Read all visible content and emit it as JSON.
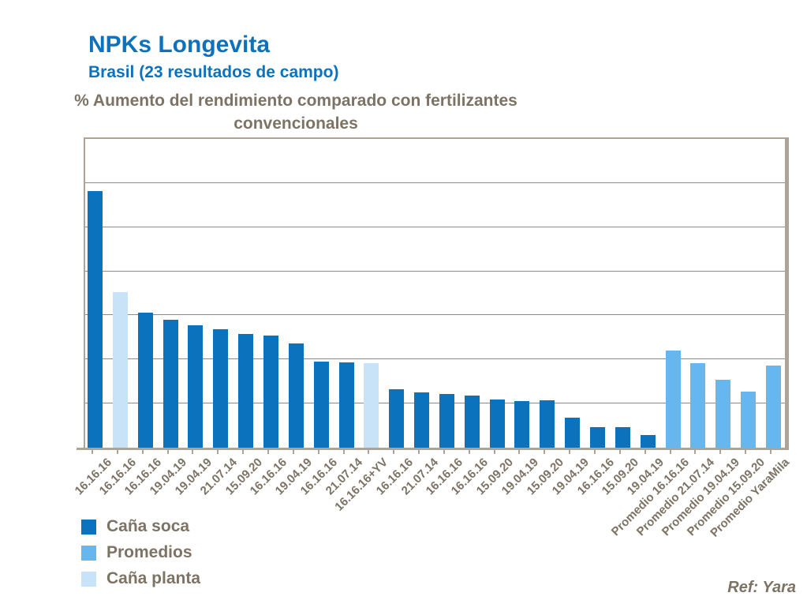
{
  "header": {
    "title": "NPKs Longevita",
    "subtitle": "Brasil (23 resultados de campo)"
  },
  "chart": {
    "title_lines": [
      "% Aumento del rendimiento comparado con fertilizantes",
      "convencionales"
    ]
  },
  "legend": {
    "items": [
      {
        "label": "Caña soca",
        "series": "cana_soca",
        "color": "#0B72BE"
      },
      {
        "label": "Promedios",
        "series": "promedios",
        "color": "#66B6F0"
      },
      {
        "label": "Caña planta",
        "series": "cana_planta",
        "color": "#C8E3F7"
      }
    ]
  },
  "footer": {
    "ref": "Ref: Yara"
  },
  "colors": {
    "title_blue": "#0C72BD",
    "text_brown": "#7D7365",
    "border_tan": "#AFA396",
    "gridline_gray": "#8A8A8A"
  },
  "chart_data": {
    "type": "bar",
    "title": "% Aumento del rendimiento comparado con fertilizantes convencionales",
    "xlabel": "",
    "ylabel": "",
    "ylim": [
      0,
      35
    ],
    "gridline_step": 5,
    "grid": true,
    "y_axis_labels_shown": false,
    "legend_position": "bottom-left",
    "legend_entries": [
      "Caña soca",
      "Promedios",
      "Caña planta"
    ],
    "series_colors": {
      "cana_soca": "#0B72BE",
      "promedios": "#66B6F0",
      "cana_planta": "#C8E3F7"
    },
    "points": [
      {
        "label": "16.16.16",
        "series": "cana_soca",
        "value": 29.1
      },
      {
        "label": "16.16.16",
        "series": "cana_planta",
        "value": 17.6
      },
      {
        "label": "16.16.16",
        "series": "cana_soca",
        "value": 15.3
      },
      {
        "label": "19.04.19",
        "series": "cana_soca",
        "value": 14.5
      },
      {
        "label": "19.04.19",
        "series": "cana_soca",
        "value": 13.9
      },
      {
        "label": "21.07.14",
        "series": "cana_soca",
        "value": 13.4
      },
      {
        "label": "15.09.20",
        "series": "cana_soca",
        "value": 12.9
      },
      {
        "label": "16.16.16",
        "series": "cana_soca",
        "value": 12.7
      },
      {
        "label": "19.04.19",
        "series": "cana_soca",
        "value": 11.8
      },
      {
        "label": "16.16.16",
        "series": "cana_soca",
        "value": 9.8
      },
      {
        "label": "21.07.14",
        "series": "cana_soca",
        "value": 9.7
      },
      {
        "label": "16.16.16+YV",
        "series": "cana_planta",
        "value": 9.6
      },
      {
        "label": "16.16.16",
        "series": "cana_soca",
        "value": 6.6
      },
      {
        "label": "21.07.14",
        "series": "cana_soca",
        "value": 6.3
      },
      {
        "label": "16.16.16",
        "series": "cana_soca",
        "value": 6.1
      },
      {
        "label": "16.16.16",
        "series": "cana_soca",
        "value": 5.9
      },
      {
        "label": "15.09.20",
        "series": "cana_soca",
        "value": 5.5
      },
      {
        "label": "19.04.19",
        "series": "cana_soca",
        "value": 5.3
      },
      {
        "label": "15.09.20",
        "series": "cana_soca",
        "value": 5.4
      },
      {
        "label": "19.04.19",
        "series": "cana_soca",
        "value": 3.4
      },
      {
        "label": "16.16.16",
        "series": "cana_soca",
        "value": 2.3
      },
      {
        "label": "15.09.20",
        "series": "cana_soca",
        "value": 2.3
      },
      {
        "label": "19.04.19",
        "series": "cana_soca",
        "value": 1.4
      },
      {
        "label": "Promedio 16.16.16",
        "series": "promedios",
        "value": 11.0
      },
      {
        "label": "Promedio 21.07.14",
        "series": "promedios",
        "value": 9.6
      },
      {
        "label": "Promedio 19.04.19",
        "series": "promedios",
        "value": 7.7
      },
      {
        "label": "Promedio 15.09.20",
        "series": "promedios",
        "value": 6.4
      },
      {
        "label": "Promedio YaraMila",
        "series": "promedios",
        "value": 9.3
      }
    ]
  }
}
